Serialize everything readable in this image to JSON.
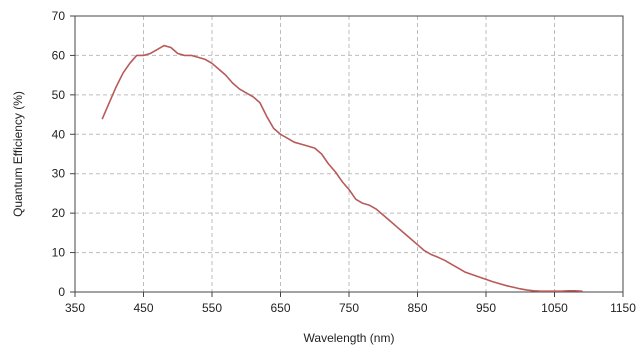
{
  "chart_data": {
    "type": "line",
    "xlabel": "Wavelength (nm)",
    "ylabel": "Quantum Efficiency (%)",
    "xlim": [
      350,
      1150
    ],
    "ylim": [
      0,
      70
    ],
    "xticks": [
      350,
      450,
      550,
      650,
      750,
      850,
      950,
      1050,
      1150
    ],
    "yticks": [
      0,
      10,
      20,
      30,
      40,
      50,
      60,
      70
    ],
    "grid": true,
    "grid_style": "dashed",
    "legend": "none",
    "colors": {
      "line": "#b85a5a",
      "grid": "#bdbdbd",
      "axis": "#444444"
    },
    "series": [
      {
        "x": [
          390,
          400,
          410,
          420,
          430,
          440,
          450,
          460,
          470,
          480,
          490,
          500,
          510,
          520,
          530,
          540,
          550,
          560,
          570,
          580,
          590,
          600,
          610,
          620,
          630,
          640,
          650,
          660,
          670,
          680,
          690,
          700,
          710,
          720,
          730,
          740,
          750,
          760,
          770,
          780,
          790,
          800,
          810,
          820,
          830,
          840,
          850,
          860,
          870,
          880,
          890,
          900,
          910,
          920,
          930,
          940,
          950,
          960,
          970,
          980,
          990,
          1000,
          1010,
          1020,
          1030,
          1040,
          1050,
          1060,
          1070,
          1080,
          1090
        ],
        "values": [
          44,
          48,
          52,
          55.5,
          58,
          60,
          60,
          60.5,
          61.5,
          62.5,
          62,
          60.5,
          60,
          60,
          59.5,
          59,
          58,
          56.5,
          55,
          53,
          51.5,
          50.5,
          49.5,
          48,
          44.5,
          41.5,
          40,
          39,
          38,
          37.5,
          37,
          36.5,
          35,
          32.5,
          30.5,
          28,
          26,
          23.5,
          22.5,
          22,
          21,
          19.5,
          18,
          16.5,
          15,
          13.5,
          12,
          10.5,
          9.5,
          8.8,
          8,
          7,
          6,
          5,
          4.4,
          3.8,
          3.2,
          2.6,
          2.1,
          1.6,
          1.2,
          0.8,
          0.5,
          0.3,
          0.2,
          0.2,
          0.2,
          0.2,
          0.3,
          0.3,
          0.2
        ]
      }
    ]
  }
}
